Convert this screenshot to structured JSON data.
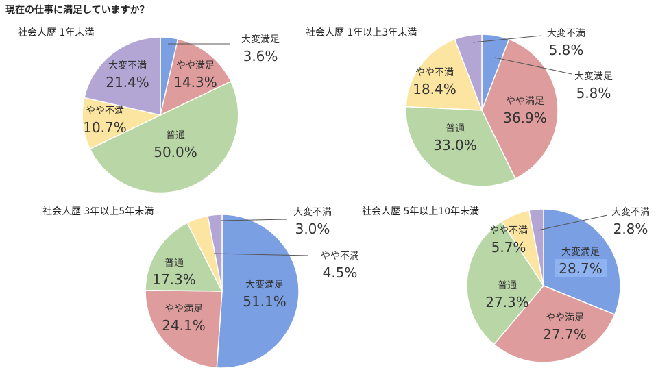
{
  "page": {
    "title": "現在の仕事に満足していますか？"
  },
  "colors": {
    "very_satisfied": "#7a9fe3",
    "somewhat_satisfied": "#de9c9c",
    "neutral": "#b9d7a6",
    "somewhat_dissatisfied": "#fce5a1",
    "very_dissatisfied": "#b4a6d4"
  },
  "chart_data": [
    {
      "type": "pie",
      "title": "社会人歴 1年未満",
      "slices": [
        {
          "label": "大変満足",
          "value": 3.6,
          "value_label": "3.6%",
          "color": "#7a9fe3"
        },
        {
          "label": "やや満足",
          "value": 14.3,
          "value_label": "14.3%",
          "color": "#de9c9c"
        },
        {
          "label": "普通",
          "value": 50.0,
          "value_label": "50.0%",
          "color": "#b9d7a6"
        },
        {
          "label": "やや不満",
          "value": 10.7,
          "value_label": "10.7%",
          "color": "#fce5a1"
        },
        {
          "label": "大変不満",
          "value": 21.4,
          "value_label": "21.4%",
          "color": "#b4a6d4"
        }
      ]
    },
    {
      "type": "pie",
      "title": "社会人歴 1年以上3年未満",
      "slices": [
        {
          "label": "大変満足",
          "value": 5.8,
          "value_label": "5.8%",
          "color": "#7a9fe3"
        },
        {
          "label": "やや満足",
          "value": 36.9,
          "value_label": "36.9%",
          "color": "#de9c9c"
        },
        {
          "label": "普通",
          "value": 33.0,
          "value_label": "33.0%",
          "color": "#b9d7a6"
        },
        {
          "label": "やや不満",
          "value": 18.4,
          "value_label": "18.4%",
          "color": "#fce5a1"
        },
        {
          "label": "大変不満",
          "value": 5.8,
          "value_label": "5.8%",
          "color": "#b4a6d4"
        }
      ]
    },
    {
      "type": "pie",
      "title": "社会人歴 3年以上5年未満",
      "slices": [
        {
          "label": "大変満足",
          "value": 51.1,
          "value_label": "51.1%",
          "color": "#7a9fe3"
        },
        {
          "label": "やや満足",
          "value": 24.1,
          "value_label": "24.1%",
          "color": "#de9c9c"
        },
        {
          "label": "普通",
          "value": 17.3,
          "value_label": "17.3%",
          "color": "#b9d7a6"
        },
        {
          "label": "やや不満",
          "value": 4.5,
          "value_label": "4.5%",
          "color": "#fce5a1"
        },
        {
          "label": "大変不満",
          "value": 3.0,
          "value_label": "3.0%",
          "color": "#b4a6d4"
        }
      ]
    },
    {
      "type": "pie",
      "title": "社会人歴 5年以上10年未満",
      "slices": [
        {
          "label": "大変満足",
          "value": 28.7,
          "value_label": "28.7%",
          "color": "#7a9fe3"
        },
        {
          "label": "やや満足",
          "value": 27.7,
          "value_label": "27.7%",
          "color": "#de9c9c"
        },
        {
          "label": "普通",
          "value": 27.3,
          "value_label": "27.3%",
          "color": "#b9d7a6"
        },
        {
          "label": "やや不満",
          "value": 5.7,
          "value_label": "5.7%",
          "color": "#fce5a1"
        },
        {
          "label": "大変不満",
          "value": 2.8,
          "value_label": "2.8%",
          "color": "#b4a6d4"
        }
      ]
    }
  ]
}
